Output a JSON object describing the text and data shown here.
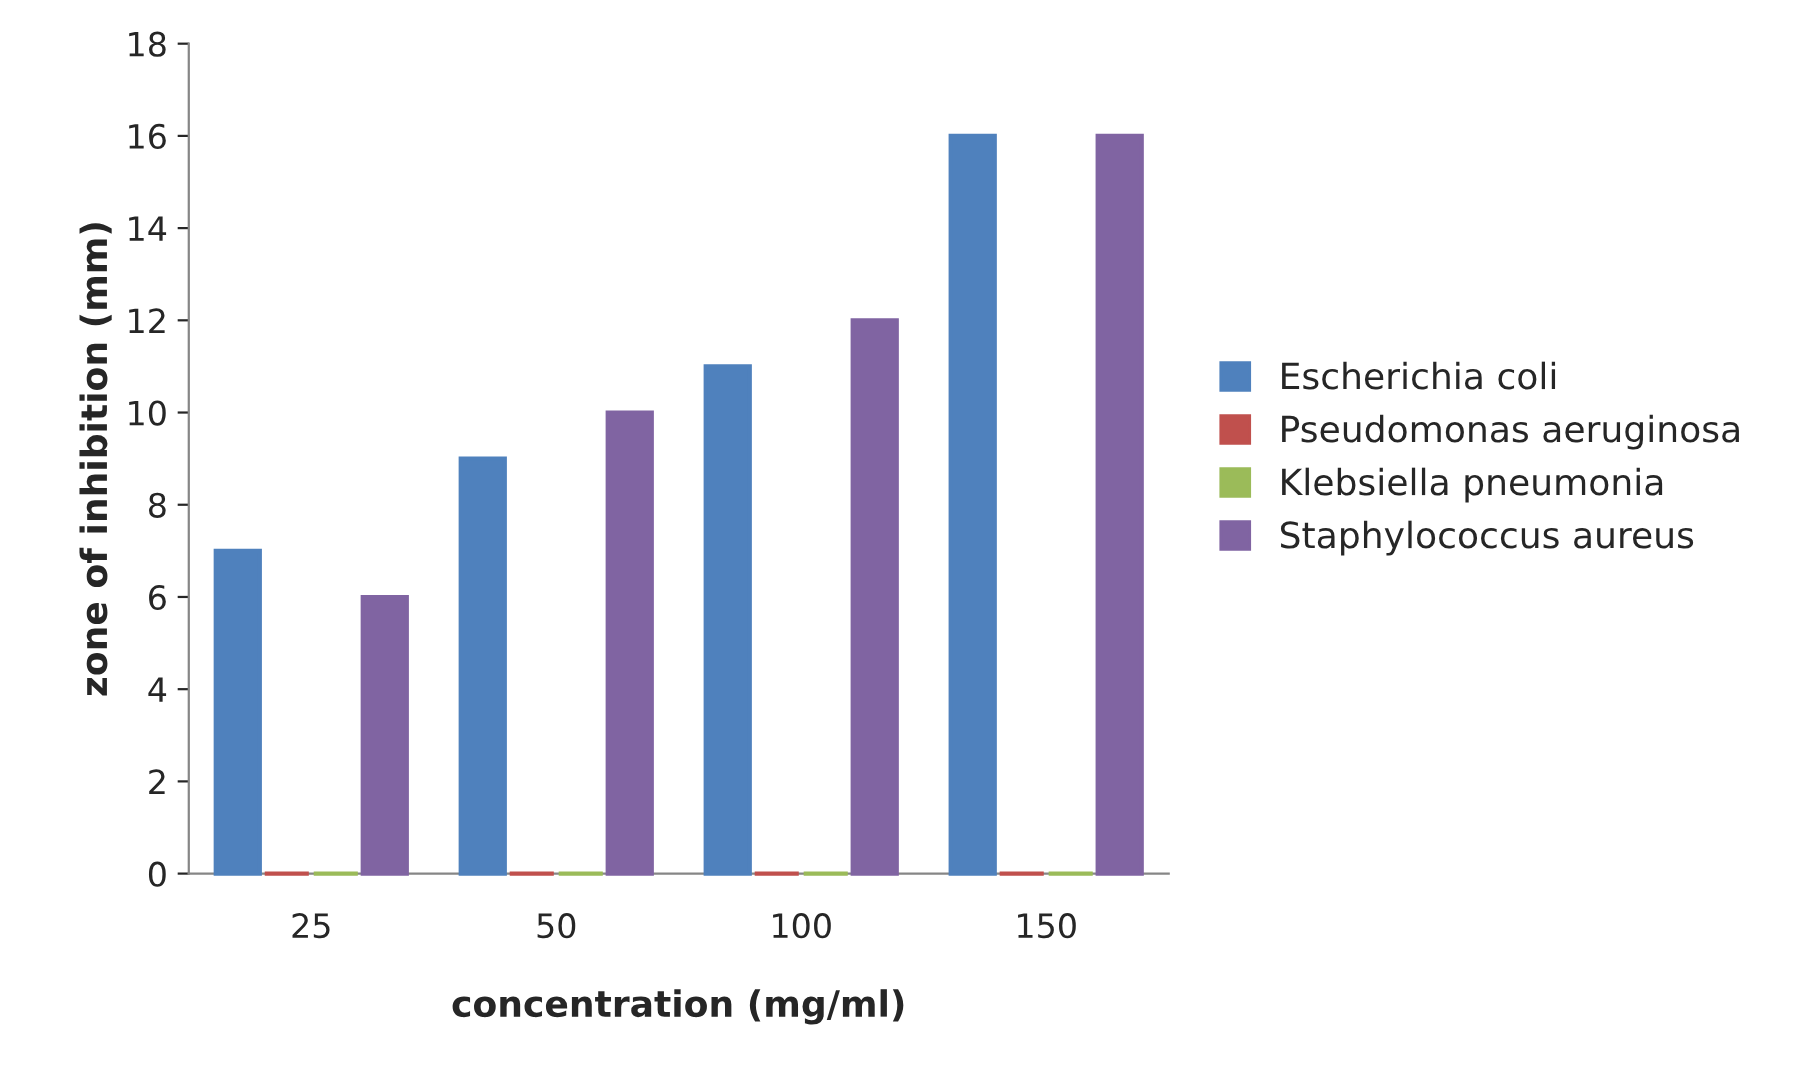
{
  "chart_data": {
    "type": "bar",
    "xlabel": "concentration (mg/ml)",
    "ylabel": "zone of inhibition (mm)",
    "categories": [
      "25",
      "50",
      "100",
      "150"
    ],
    "series": [
      {
        "name": "Escherichia coli",
        "color": "#4f81bd",
        "values": [
          7,
          9,
          11,
          16
        ]
      },
      {
        "name": "Pseudomonas aeruginosa",
        "color": "#c0504d",
        "values": [
          0,
          0,
          0,
          0
        ]
      },
      {
        "name": "Klebsiella pneumonia",
        "color": "#9bbb59",
        "values": [
          0,
          0,
          0,
          0
        ]
      },
      {
        "name": "Staphylococcus aureus",
        "color": "#8064a2",
        "values": [
          6,
          10,
          12,
          16
        ]
      }
    ],
    "ylim": [
      0,
      18
    ],
    "yticks": [
      0,
      2,
      4,
      6,
      8,
      10,
      12,
      14,
      16,
      18
    ],
    "grid": false,
    "legend": "right"
  }
}
